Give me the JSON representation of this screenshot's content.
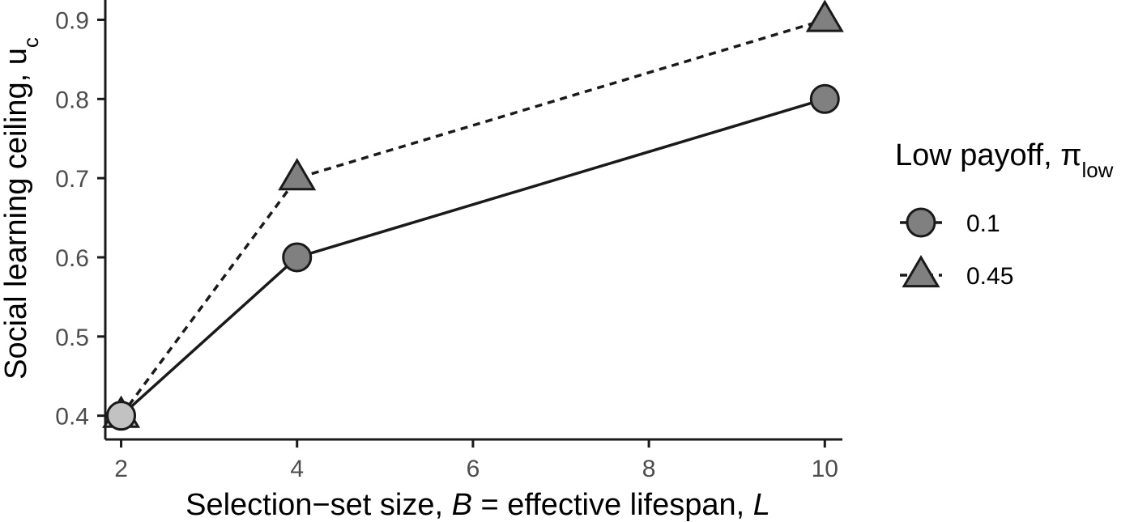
{
  "chart_data": {
    "type": "line",
    "title": "",
    "xlabel": {
      "prefix": "Selection−set size, ",
      "var1": "B",
      "middle": "  = effective lifespan, ",
      "var2": "L"
    },
    "ylabel": {
      "main": "Social learning ceiling, u",
      "sub": "c"
    },
    "xlim": [
      1.82,
      10.2
    ],
    "ylim": [
      0.37,
      0.925
    ],
    "x_ticks": [
      2,
      4,
      6,
      8,
      10
    ],
    "y_ticks": [
      0.4,
      0.5,
      0.6,
      0.7,
      0.8,
      0.9
    ],
    "x_tick_labels": [
      "2",
      "4",
      "6",
      "8",
      "10"
    ],
    "y_tick_labels": [
      "0.4",
      "0.5",
      "0.6",
      "0.7",
      "0.8",
      "0.9"
    ],
    "grid": false,
    "legend": {
      "placement": "right",
      "title_main": "Low payoff, π",
      "title_sub": "low"
    },
    "series": [
      {
        "name": "0.1",
        "shape": "circle",
        "line": "solid",
        "x": [
          2,
          4,
          10
        ],
        "y": [
          0.4,
          0.6,
          0.8
        ]
      },
      {
        "name": "0.45",
        "shape": "triangle",
        "line": "dashed",
        "x": [
          2,
          4,
          10
        ],
        "y": [
          0.4,
          0.7,
          0.9
        ]
      }
    ],
    "colors": {
      "marker_fill": "#808080",
      "first_marker_fill": "#c2c2c2",
      "stroke": "#1a1a1a",
      "tick_text": "#4d4d4d"
    }
  }
}
